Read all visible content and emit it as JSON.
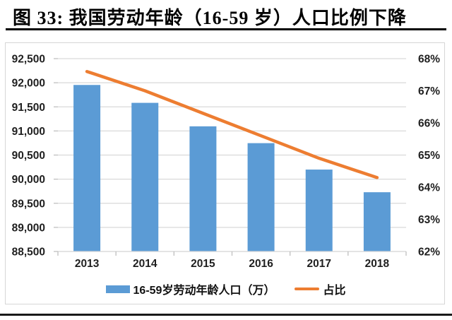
{
  "header": {
    "figure_title": "图 33: 我国劳动年龄（16-59 岁）人口比例下降"
  },
  "chart_data": {
    "type": "combo-bar-line",
    "title": "图 33: 我国劳动年龄（16-59 岁）人口比例下降",
    "categories": [
      "2013",
      "2014",
      "2015",
      "2016",
      "2017",
      "2018"
    ],
    "series": [
      {
        "name": "16-59岁劳动年龄人口（万）",
        "type": "bar",
        "axis": "left",
        "color": "#5B9BD5",
        "values": [
          91954,
          91583,
          91096,
          90747,
          90199,
          89729
        ]
      },
      {
        "name": "占比",
        "type": "line",
        "axis": "right",
        "color": "#ED7D31",
        "values": [
          67.6,
          67.0,
          66.3,
          65.6,
          64.9,
          64.3
        ]
      }
    ],
    "left_axis": {
      "min": 88500,
      "max": 92500,
      "step": 500,
      "tick_labels": [
        "92,500",
        "92,000",
        "91,500",
        "91,000",
        "90,500",
        "90,000",
        "89,500",
        "89,000",
        "88,500"
      ]
    },
    "right_axis": {
      "min": 62,
      "max": 68,
      "step": 1,
      "tick_labels": [
        "68%",
        "67%",
        "66%",
        "65%",
        "64%",
        "63%",
        "62%"
      ]
    },
    "grid": true,
    "legend_position": "bottom",
    "colors": {
      "gridline": "#d9d9d9",
      "tick_mark": "#bfbfbf",
      "axis_text": "#1f1f1f"
    }
  }
}
